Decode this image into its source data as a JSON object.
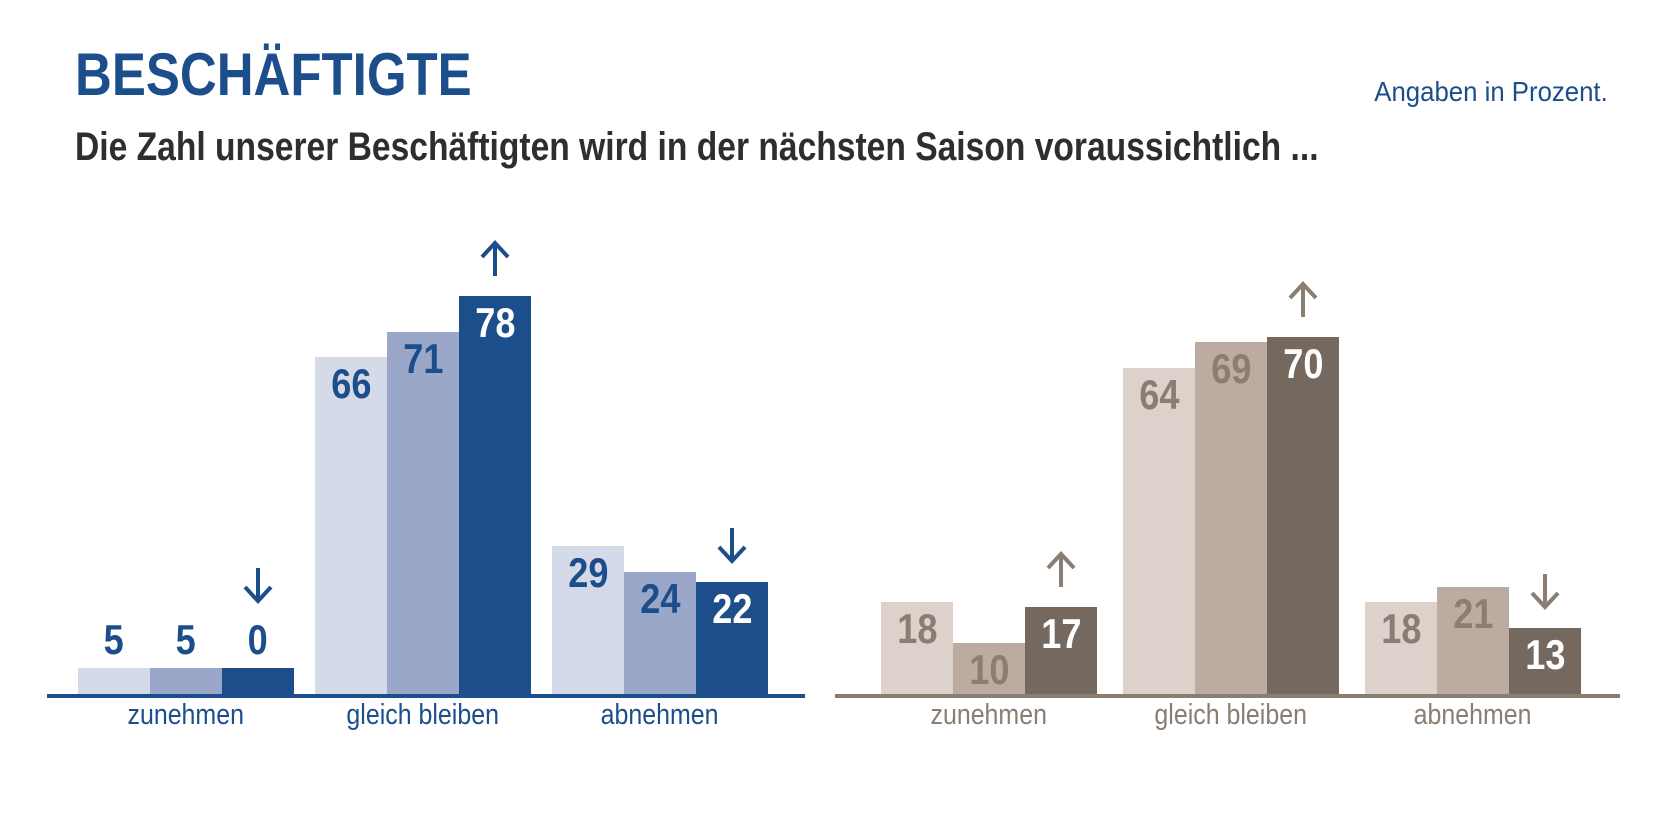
{
  "header": {
    "title": "BESCHÄFTIGTE",
    "subtitle": "Die Zahl unserer Beschäftigten wird in der nächsten Saison voraussichtlich ...",
    "unit_note": "Angaben in Prozent."
  },
  "colors": {
    "title": "#1d4e8c",
    "subtitle": "#2e2e2d",
    "unit_note": "#1d4e8c",
    "background": "#ffffff"
  },
  "chart_data": [
    {
      "type": "bar",
      "id": "beschaeftigte-blue",
      "categories": [
        "zunehmen",
        "gleich bleiben",
        "abnehmen"
      ],
      "series": [
        {
          "name": "bar-1-light",
          "color": "#d4dae8",
          "values": [
            5,
            66,
            29
          ]
        },
        {
          "name": "bar-2-medium",
          "color": "#9aa7c9",
          "values": [
            5,
            71,
            24
          ]
        },
        {
          "name": "bar-3-dark",
          "color": "#1d4e8c",
          "values": [
            0,
            78,
            22
          ]
        }
      ],
      "trend_arrows": [
        "down",
        "up",
        "down"
      ],
      "accent_color": "#1d4e8c",
      "dark_bar_label_color": "#ffffff",
      "axis_color": "#1d4e8c",
      "value_labels_shown": true,
      "ylim": [
        0,
        100
      ],
      "grid": false,
      "legend": "none"
    },
    {
      "type": "bar",
      "id": "beschaeftigte-taupe",
      "categories": [
        "zunehmen",
        "gleich bleiben",
        "abnehmen"
      ],
      "series": [
        {
          "name": "bar-1-light",
          "color": "#dcd2cb",
          "values": [
            18,
            64,
            18
          ]
        },
        {
          "name": "bar-2-medium",
          "color": "#bcaba1",
          "values": [
            10,
            69,
            21
          ]
        },
        {
          "name": "bar-3-dark",
          "color": "#75695f",
          "values": [
            17,
            70,
            13
          ]
        }
      ],
      "trend_arrows": [
        "up",
        "up",
        "down"
      ],
      "accent_color": "#8a7d72",
      "dark_bar_label_color": "#ffffff",
      "axis_color": "#8a7d72",
      "value_labels_shown": true,
      "ylim": [
        0,
        100
      ],
      "grid": false,
      "legend": "none"
    }
  ]
}
